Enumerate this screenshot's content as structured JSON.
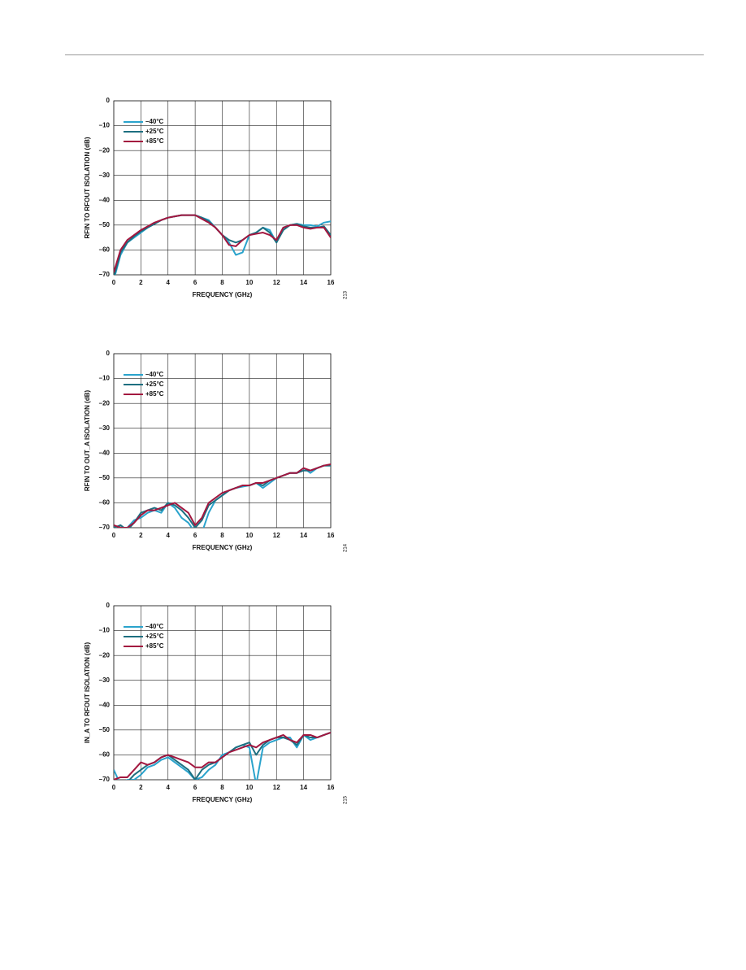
{
  "chart_data": [
    {
      "type": "line",
      "figure_id": "213",
      "xlabel": "FREQUENCY (GHz)",
      "ylabel": "RFIN TO RFOUT ISOLATION (dB)",
      "x": [
        0,
        0.5,
        1,
        1.5,
        2,
        2.5,
        3,
        3.5,
        4,
        4.5,
        5,
        5.5,
        6,
        6.5,
        7,
        7.5,
        8,
        8.5,
        9,
        9.5,
        10,
        10.5,
        11,
        11.5,
        12,
        12.5,
        13,
        13.5,
        14,
        14.5,
        15,
        15.5,
        16
      ],
      "series": [
        {
          "name": "–40°C",
          "color": "#2aa3cc",
          "values": [
            -72,
            -62,
            -57,
            -55,
            -53,
            -51,
            -49.5,
            -48,
            -47,
            -46.5,
            -46,
            -46,
            -46,
            -47,
            -48,
            -51,
            -54,
            -57,
            -62,
            -61,
            -54,
            -53,
            -51,
            -52,
            -57,
            -51,
            -50,
            -49.5,
            -50,
            -50,
            -50.5,
            -49,
            -48.5
          ]
        },
        {
          "name": "+25°C",
          "color": "#1d6f80",
          "values": [
            -71,
            -61,
            -57,
            -54.5,
            -52.5,
            -51,
            -49.5,
            -48,
            -47,
            -46.5,
            -46,
            -46,
            -46,
            -47,
            -48.5,
            -51,
            -54,
            -56,
            -57,
            -56,
            -54,
            -53,
            -51,
            -53,
            -57,
            -52,
            -50,
            -49.5,
            -50.5,
            -51,
            -51,
            -50.5,
            -54
          ]
        },
        {
          "name": "+85°C",
          "color": "#a3173f",
          "values": [
            -69,
            -60,
            -56,
            -54,
            -52,
            -50.5,
            -49,
            -48,
            -47,
            -46.5,
            -46,
            -46,
            -46,
            -47.5,
            -49,
            -51,
            -54,
            -58,
            -58.5,
            -56,
            -54,
            -53.5,
            -53,
            -54,
            -56,
            -51,
            -50,
            -50,
            -51,
            -51.5,
            -51,
            -51,
            -55
          ]
        }
      ],
      "xlim": [
        0,
        16
      ],
      "xticks": [
        0,
        2,
        4,
        6,
        8,
        10,
        12,
        14,
        16
      ],
      "ylim": [
        -70,
        0
      ],
      "yticks": [
        {
          "value": -70,
          "label": "–70"
        },
        {
          "value": -60,
          "label": "–60"
        },
        {
          "value": -50,
          "label": "–50"
        },
        {
          "value": -40,
          "label": "–40"
        },
        {
          "value": -30,
          "label": "–30"
        },
        {
          "value": -20,
          "label": "–20"
        },
        {
          "value": -10,
          "label": "–10"
        },
        0
      ],
      "grid": true,
      "legend": "top-left"
    },
    {
      "type": "line",
      "figure_id": "214",
      "xlabel": "FREQUENCY (GHz)",
      "ylabel": "RFIN TO OUT_A ISOLATION (dB)",
      "x": [
        0,
        0.5,
        1,
        1.5,
        2,
        2.5,
        3,
        3.5,
        4,
        4.5,
        5,
        5.5,
        6,
        6.5,
        7,
        7.5,
        8,
        8.5,
        9,
        9.5,
        10,
        10.5,
        11,
        11.5,
        12,
        12.5,
        13,
        13.5,
        14,
        14.5,
        15,
        15.5,
        16
      ],
      "series": [
        {
          "name": "–40°C",
          "color": "#2aa3cc",
          "values": [
            -69,
            -72,
            -70,
            -67,
            -66,
            -64,
            -63,
            -64,
            -60,
            -62,
            -66,
            -68,
            -72,
            -72,
            -64,
            -59,
            -57,
            -55,
            -54,
            -53.5,
            -53,
            -52,
            -54,
            -52,
            -50,
            -49,
            -48,
            -48,
            -46,
            -48,
            -46,
            -45,
            -45
          ]
        },
        {
          "name": "+25°C",
          "color": "#1d6f80",
          "values": [
            -70,
            -69,
            -71,
            -68,
            -64,
            -63,
            -62,
            -63,
            -60,
            -61,
            -63,
            -66,
            -70,
            -67,
            -61,
            -59,
            -57,
            -55,
            -54,
            -53,
            -53,
            -52,
            -53,
            -51,
            -50,
            -49,
            -48,
            -48,
            -47,
            -47,
            -46,
            -45,
            -45
          ]
        },
        {
          "name": "+85°C",
          "color": "#a3173f",
          "values": [
            -69,
            -70,
            -70,
            -68,
            -65,
            -63,
            -63,
            -62,
            -61,
            -60,
            -62,
            -64,
            -69,
            -66,
            -60,
            -58,
            -56,
            -55,
            -54,
            -53,
            -53,
            -52,
            -52,
            -51,
            -50,
            -49,
            -48,
            -48,
            -46,
            -47,
            -46,
            -45,
            -44.5
          ]
        }
      ],
      "xlim": [
        0,
        16
      ],
      "xticks": [
        0,
        2,
        4,
        6,
        8,
        10,
        12,
        14,
        16
      ],
      "ylim": [
        -70,
        0
      ],
      "yticks": [
        {
          "value": -70,
          "label": "–70"
        },
        {
          "value": -60,
          "label": "–60"
        },
        {
          "value": -50,
          "label": "–50"
        },
        {
          "value": -40,
          "label": "–40"
        },
        {
          "value": -30,
          "label": "–30"
        },
        {
          "value": -20,
          "label": "–20"
        },
        {
          "value": -10,
          "label": "–10"
        },
        0
      ],
      "grid": true,
      "legend": "top-left"
    },
    {
      "type": "line",
      "figure_id": "215",
      "xlabel": "FREQUENCY (GHz)",
      "ylabel": "IN_A TO RFOUT ISOLATION (dB)",
      "x": [
        0,
        0.5,
        1,
        1.5,
        2,
        2.5,
        3,
        3.5,
        4,
        4.5,
        5,
        5.5,
        6,
        6.5,
        7,
        7.5,
        8,
        8.5,
        9,
        9.5,
        10,
        10.5,
        11,
        11.5,
        12,
        12.5,
        13,
        13.5,
        14,
        14.5,
        15,
        15.5,
        16
      ],
      "series": [
        {
          "name": "–40°C",
          "color": "#2aa3cc",
          "values": [
            -66,
            -72,
            -70,
            -70,
            -68,
            -65,
            -64,
            -62,
            -61,
            -63,
            -65,
            -67,
            -70,
            -69,
            -66,
            -64,
            -60,
            -59,
            -57,
            -56,
            -57,
            -72,
            -57,
            -55,
            -54,
            -53,
            -53,
            -57,
            -52,
            -54,
            -53,
            -52,
            -51
          ]
        },
        {
          "name": "+25°C",
          "color": "#1d6f80",
          "values": [
            -70,
            -71,
            -71,
            -68,
            -66,
            -64,
            -63,
            -61,
            -60,
            -62,
            -64,
            -66,
            -70,
            -66,
            -64,
            -63,
            -61,
            -59,
            -57,
            -56,
            -55,
            -60,
            -56,
            -54,
            -53,
            -53,
            -54,
            -56,
            -52,
            -53,
            -53,
            -52,
            -51
          ]
        },
        {
          "name": "+85°C",
          "color": "#a3173f",
          "values": [
            -70,
            -69,
            -69,
            -66,
            -63,
            -64,
            -63,
            -61,
            -60,
            -61,
            -62,
            -63,
            -65,
            -65,
            -63,
            -63,
            -61,
            -59,
            -58,
            -57,
            -56,
            -57,
            -55,
            -54,
            -53,
            -52,
            -54,
            -55,
            -52,
            -52,
            -53,
            -52,
            -51
          ]
        }
      ],
      "xlim": [
        0,
        16
      ],
      "xticks": [
        0,
        2,
        4,
        6,
        8,
        10,
        12,
        14,
        16
      ],
      "ylim": [
        -70,
        0
      ],
      "yticks": [
        {
          "value": -70,
          "label": "–70"
        },
        {
          "value": -60,
          "label": "–60"
        },
        {
          "value": -50,
          "label": "–50"
        },
        {
          "value": -40,
          "label": "–40"
        },
        {
          "value": -30,
          "label": "–30"
        },
        {
          "value": -20,
          "label": "–20"
        },
        {
          "value": -10,
          "label": "–10"
        },
        0
      ],
      "grid": true,
      "legend": "top-left"
    }
  ]
}
